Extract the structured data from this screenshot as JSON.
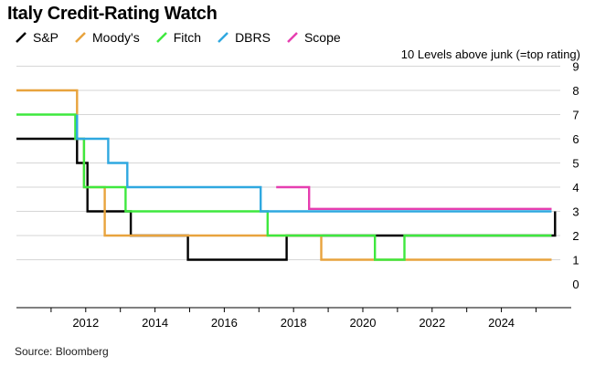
{
  "chart_data": {
    "type": "line",
    "title": "Italy Credit-Rating Watch",
    "ylabel": "10 Levels above junk (=top rating)",
    "source": "Source: Bloomberg",
    "ylim": [
      0,
      9
    ],
    "xlim": [
      2010.0,
      2025.7
    ],
    "y_ticks": [
      "0",
      "1",
      "2",
      "3",
      "4",
      "5",
      "6",
      "7",
      "8",
      "9"
    ],
    "x_ticks": [
      "2012",
      "2014",
      "2016",
      "2018",
      "2020",
      "2022",
      "2024"
    ],
    "grid": true,
    "series": [
      {
        "name": "S&P",
        "color": "#000000",
        "points": [
          [
            2010.0,
            6
          ],
          [
            2011.75,
            6
          ],
          [
            2011.75,
            5
          ],
          [
            2012.05,
            5
          ],
          [
            2012.05,
            3
          ],
          [
            2013.3,
            3
          ],
          [
            2013.3,
            2
          ],
          [
            2014.95,
            2
          ],
          [
            2014.95,
            1
          ],
          [
            2017.8,
            1
          ],
          [
            2017.8,
            2
          ],
          [
            2025.55,
            2
          ],
          [
            2025.55,
            3
          ]
        ]
      },
      {
        "name": "Moody's",
        "color": "#E8A33D",
        "points": [
          [
            2010.0,
            8
          ],
          [
            2011.75,
            8
          ],
          [
            2011.75,
            6
          ],
          [
            2011.95,
            6
          ],
          [
            2011.95,
            4
          ],
          [
            2012.55,
            4
          ],
          [
            2012.55,
            2
          ],
          [
            2018.8,
            2
          ],
          [
            2018.8,
            1
          ],
          [
            2025.45,
            1
          ]
        ]
      },
      {
        "name": "Fitch",
        "color": "#3EE83E",
        "points": [
          [
            2010.0,
            7
          ],
          [
            2011.7,
            7
          ],
          [
            2011.7,
            6
          ],
          [
            2011.95,
            6
          ],
          [
            2011.95,
            4
          ],
          [
            2013.15,
            4
          ],
          [
            2013.15,
            3
          ],
          [
            2017.25,
            3
          ],
          [
            2017.25,
            2
          ],
          [
            2020.35,
            2
          ],
          [
            2020.35,
            1
          ],
          [
            2021.2,
            1
          ],
          [
            2021.2,
            2
          ],
          [
            2025.45,
            2
          ]
        ]
      },
      {
        "name": "DBRS",
        "color": "#2FA8E0",
        "points": [
          [
            2011.75,
            7
          ],
          [
            2011.75,
            6
          ],
          [
            2012.65,
            6
          ],
          [
            2012.65,
            5
          ],
          [
            2013.2,
            5
          ],
          [
            2013.2,
            4
          ],
          [
            2017.05,
            4
          ],
          [
            2017.05,
            3
          ],
          [
            2025.45,
            3
          ]
        ]
      },
      {
        "name": "Scope",
        "color": "#E63EB0",
        "points": [
          [
            2017.5,
            4
          ],
          [
            2018.45,
            4
          ],
          [
            2018.45,
            3.1
          ],
          [
            2025.45,
            3.1
          ]
        ]
      }
    ]
  }
}
